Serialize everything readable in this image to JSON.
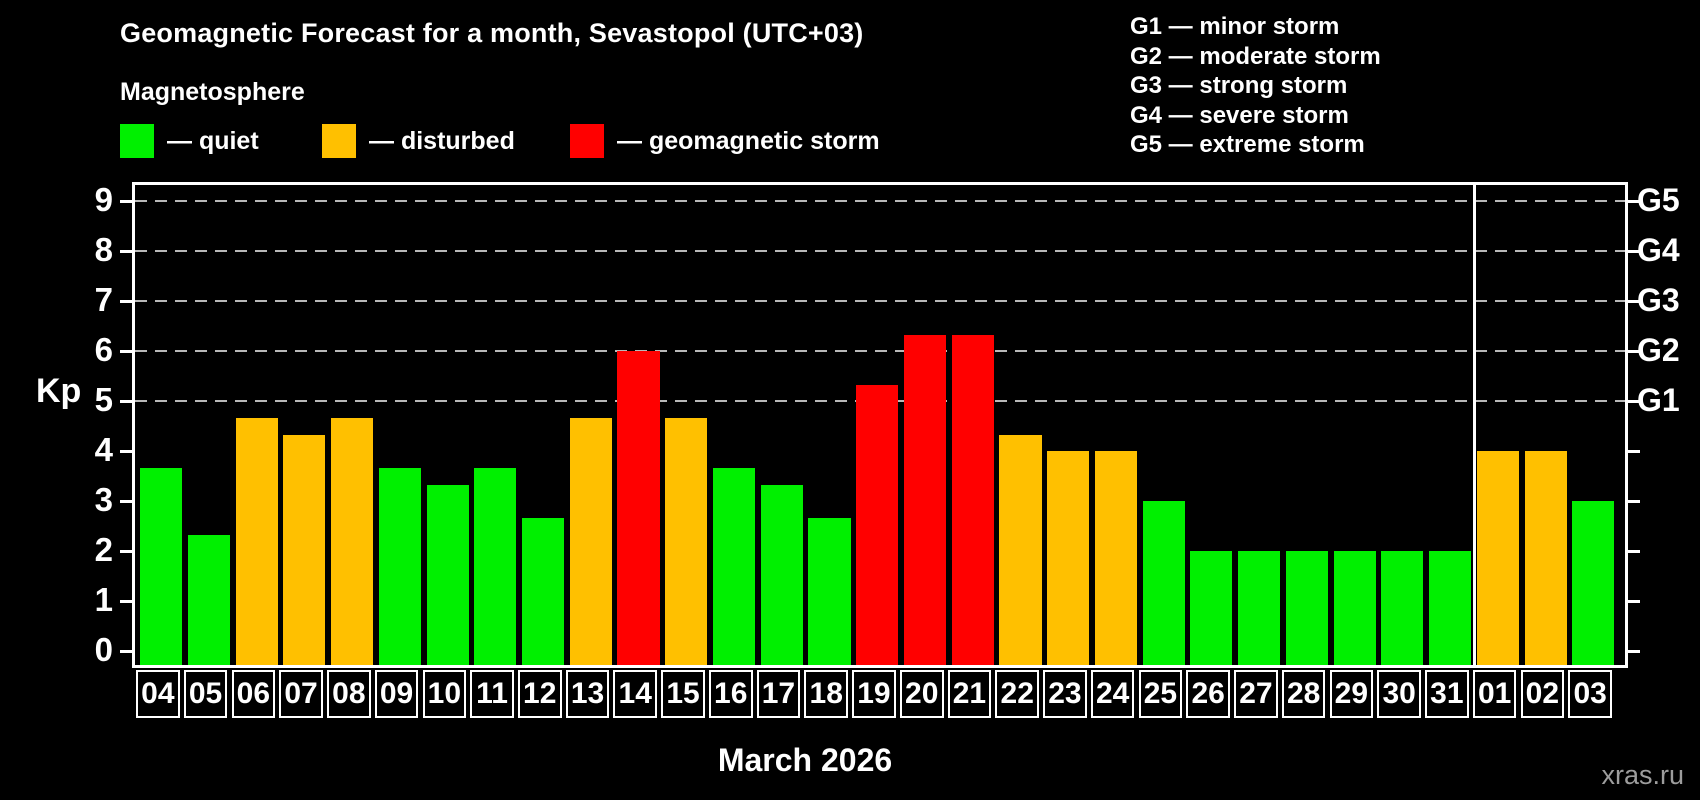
{
  "title": "Geomagnetic Forecast for a month, Sevastopol (UTC+03)",
  "subtitle": "Magnetosphere",
  "legend": {
    "quiet": {
      "label": "— quiet",
      "color": "#00f000"
    },
    "disturbed": {
      "label": "— disturbed",
      "color": "#ffc000"
    },
    "storm": {
      "label": "— geomagnetic storm",
      "color": "#ff0000"
    }
  },
  "g_legend": [
    "G1 — minor storm",
    "G2 — moderate storm",
    "G3 — strong storm",
    "G4 — severe storm",
    "G5 — extreme storm"
  ],
  "watermark": "xras.ru",
  "chart_data": {
    "type": "bar",
    "title": "Geomagnetic Forecast for a month, Sevastopol (UTC+03)",
    "xlabel": "March 2026",
    "ylabel": "Kp",
    "ylim": [
      -0.3,
      9.4
    ],
    "yticks": [
      0,
      1,
      2,
      3,
      4,
      5,
      6,
      7,
      8,
      9
    ],
    "gridlines_at": [
      5,
      6,
      7,
      8,
      9
    ],
    "grid": "dashed",
    "legend_position": "top-left",
    "right_axis_labels": [
      {
        "label": "G1",
        "value": 5
      },
      {
        "label": "G2",
        "value": 6
      },
      {
        "label": "G3",
        "value": 7
      },
      {
        "label": "G4",
        "value": 8
      },
      {
        "label": "G5",
        "value": 9
      }
    ],
    "categories": [
      "04",
      "05",
      "06",
      "07",
      "08",
      "09",
      "10",
      "11",
      "12",
      "13",
      "14",
      "15",
      "16",
      "17",
      "18",
      "19",
      "20",
      "21",
      "22",
      "23",
      "24",
      "25",
      "26",
      "27",
      "28",
      "29",
      "30",
      "31",
      "01",
      "02",
      "03"
    ],
    "values": [
      3.67,
      2.33,
      4.67,
      4.33,
      4.67,
      3.67,
      3.33,
      3.67,
      2.67,
      4.67,
      6.0,
      4.67,
      3.67,
      3.33,
      2.67,
      5.33,
      6.33,
      6.33,
      4.33,
      4.0,
      4.0,
      3.0,
      2.0,
      2.0,
      2.0,
      2.0,
      2.0,
      2.0,
      4.0,
      4.0,
      3.0
    ],
    "statuses": [
      "quiet",
      "quiet",
      "disturbed",
      "disturbed",
      "disturbed",
      "quiet",
      "quiet",
      "quiet",
      "quiet",
      "disturbed",
      "storm",
      "disturbed",
      "quiet",
      "quiet",
      "quiet",
      "storm",
      "storm",
      "storm",
      "disturbed",
      "disturbed",
      "disturbed",
      "quiet",
      "quiet",
      "quiet",
      "quiet",
      "quiet",
      "quiet",
      "quiet",
      "disturbed",
      "disturbed",
      "quiet"
    ],
    "series_colors": {
      "quiet": "#00f000",
      "disturbed": "#ffc000",
      "storm": "#ff0000"
    },
    "month_separator_after": "31"
  }
}
